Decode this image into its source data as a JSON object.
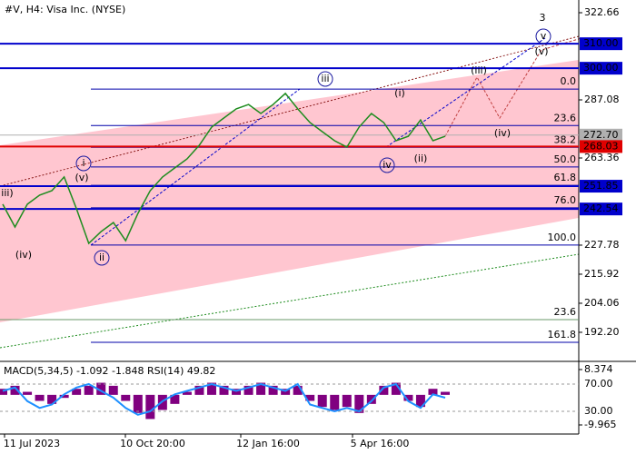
{
  "chart_data": {
    "type": "line",
    "title": "#V, H4:  Visa Inc. (NYSE)",
    "x_labels": [
      "11 Jul 2023",
      "10 Oct 20:00",
      "12 Jan 16:00",
      "5 Apr 16:00"
    ],
    "values": [
      244.5,
      235.2,
      244.5,
      248.2,
      250.0,
      255.6,
      242.6,
      228.5,
      233.3,
      237.0,
      229.6,
      240.7,
      250.0,
      255.6,
      259.3,
      263.0,
      268.6,
      276.0,
      279.7,
      283.4,
      285.2,
      281.5,
      285.2,
      289.7,
      283.4,
      277.8,
      274.1,
      270.4,
      267.8,
      276.0,
      281.5,
      277.8,
      270.4,
      272.2,
      278.9,
      270.4,
      272.2
    ],
    "color": "#1e8c1e",
    "ylim": [
      180.7,
      327.85
    ],
    "yticks": [
      322.66,
      287.08,
      263.36,
      227.78,
      215.92,
      204.06,
      {
        "value": 192.2,
        "label": "192.20"
      }
    ],
    "levels": [
      {
        "value": 310,
        "label": "310.00",
        "color": "#0000cc"
      },
      {
        "value": 300,
        "label": "300.00",
        "color": "#0000cc"
      },
      {
        "value": 272.7,
        "label": "272.70",
        "color": "#b0b0b0"
      },
      {
        "value": 268.03,
        "label": "268.03",
        "color": "#e00000"
      },
      {
        "value": 251.85,
        "label": "251.85",
        "color": "#0000cc"
      },
      {
        "value": 242.54,
        "label": "242.54",
        "color": "#0000cc"
      }
    ],
    "fib_levels": [
      {
        "value": 291.5,
        "label": "0.0"
      },
      {
        "value": 276.6,
        "label": "23.6"
      },
      {
        "value": 267.7,
        "label": "38.2"
      },
      {
        "value": 259.7,
        "label": "50.0"
      },
      {
        "value": 252.2,
        "label": "61.8"
      },
      {
        "value": 243.0,
        "label": "76.0"
      },
      {
        "value": 227.8,
        "label": "100.0"
      },
      {
        "value": 197.4,
        "label": "23.6"
      },
      {
        "value": 188.1,
        "label": "161.8"
      }
    ],
    "wave_labels": [
      "3",
      "v",
      "(v)",
      "(iii)",
      "(iv)",
      "iii",
      "(i)",
      "iv",
      "(ii)",
      "i",
      "(v)",
      "iii)",
      "(iv)",
      "ii"
    ],
    "indicator": {
      "title": "MACD(5,34,5) -1.092 -1.848 RSI(14) 49.82",
      "macd_ylim": [
        -12.97,
        10.48
      ],
      "macd_ticks": [
        8.374,
        -9.965
      ],
      "rsi_ylim": [
        -3.3,
        100.7
      ],
      "rsi_ticks": [
        {
          "value": 70,
          "label": "70.00"
        },
        {
          "value": 30,
          "label": "30.00"
        }
      ],
      "histogram": [
        2,
        3,
        1,
        -2,
        -3,
        -1,
        2,
        3,
        4,
        3,
        -2,
        -6,
        -8,
        -5,
        -3,
        1,
        3,
        4,
        3,
        2,
        3,
        4,
        3,
        2,
        3,
        -2,
        -4,
        -5,
        -4,
        -6,
        -3,
        3,
        4,
        -2,
        -4,
        2,
        1
      ],
      "rsi": [
        60,
        65,
        45,
        35,
        40,
        55,
        65,
        70,
        60,
        50,
        35,
        25,
        30,
        45,
        55,
        60,
        65,
        70,
        65,
        60,
        65,
        70,
        65,
        60,
        70,
        40,
        35,
        30,
        35,
        30,
        45,
        65,
        70,
        45,
        35,
        55,
        50
      ]
    }
  }
}
